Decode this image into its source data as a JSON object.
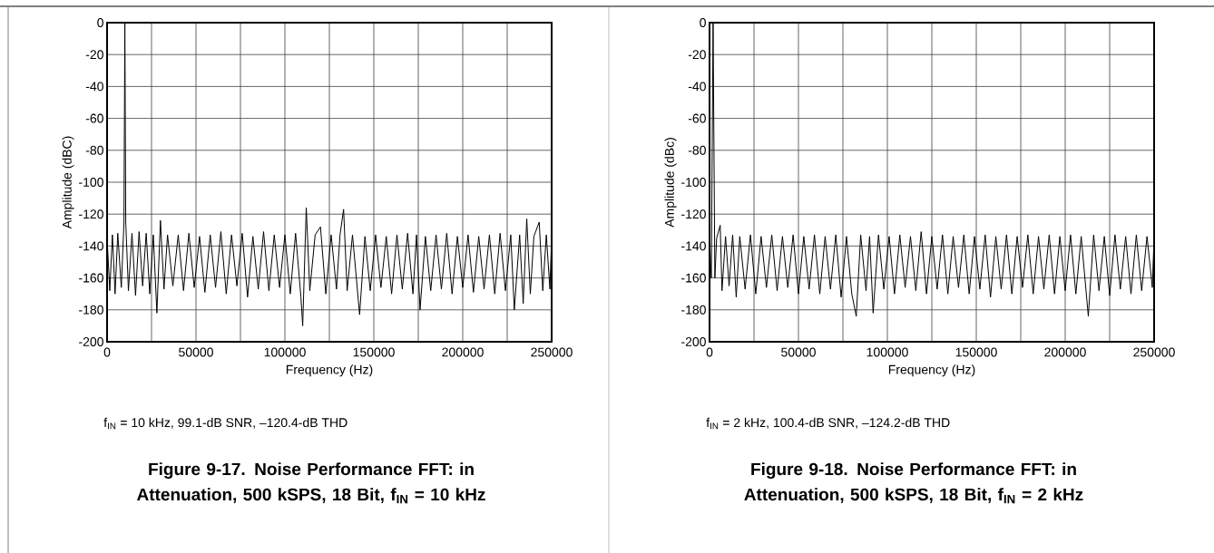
{
  "chart_data": [
    {
      "type": "line",
      "xlabel": "Frequency (Hz)",
      "ylabel": "Amplitude (dBC)",
      "title": "Figure 9-17. Noise Performance FFT: in Attenuation, 500 kSPS, 18 Bit, f$_{IN}$ = 10 kHz",
      "annotations": [
        "f$_{IN}$ = 10 kHz, 99.1-dB SNR, –120.4-dB THD"
      ],
      "xlim": [
        0,
        250000
      ],
      "ylim": [
        -200,
        0
      ],
      "xticks": [
        0,
        {
          "value": 25000,
          "label": null
        },
        50000,
        {
          "value": 75000,
          "label": null
        },
        100000,
        {
          "value": 125000,
          "label": null
        },
        150000,
        {
          "value": 175000,
          "label": null
        },
        200000,
        {
          "value": 225000,
          "label": null
        },
        250000
      ],
      "yticks": [
        -200,
        -180,
        -160,
        -140,
        -120,
        -100,
        -80,
        -60,
        -40,
        -20,
        0
      ],
      "grid": true,
      "series": [
        {
          "color": "#000000",
          "x": [
            0,
            1500,
            3000,
            4500,
            6000,
            8000,
            9500,
            10000,
            10500,
            12000,
            14000,
            16000,
            18000,
            20000,
            22000,
            24000,
            26000,
            28000,
            30000,
            32000,
            34000,
            37000,
            40000,
            43000,
            46000,
            49000,
            52000,
            55000,
            58000,
            61000,
            64000,
            67000,
            70000,
            73000,
            76000,
            79000,
            82000,
            85000,
            88000,
            91000,
            94000,
            97000,
            100000,
            103000,
            106000,
            109000,
            110000,
            112000,
            114000,
            117000,
            120000,
            123000,
            126000,
            129000,
            131000,
            133000,
            135000,
            138000,
            142000,
            145000,
            148000,
            151000,
            154000,
            157000,
            160000,
            163000,
            166000,
            169000,
            172000,
            174000,
            176000,
            179000,
            182000,
            185000,
            188000,
            191000,
            194000,
            197000,
            200000,
            203000,
            206000,
            209000,
            212000,
            215000,
            218000,
            221000,
            224000,
            227000,
            229000,
            232000,
            234000,
            236000,
            238000,
            240000,
            243000,
            245000,
            247000,
            249000,
            250000
          ],
          "values": [
            -135,
            -168,
            -133,
            -170,
            -132,
            -166,
            -125,
            0,
            -125,
            -168,
            -132,
            -171,
            -131,
            -165,
            -132,
            -170,
            -133,
            -182,
            -124,
            -167,
            -133,
            -165,
            -133,
            -168,
            -132,
            -166,
            -134,
            -169,
            -133,
            -166,
            -131,
            -170,
            -133,
            -165,
            -132,
            -172,
            -134,
            -167,
            -131,
            -168,
            -133,
            -166,
            -133,
            -170,
            -132,
            -172,
            -190,
            -116,
            -168,
            -133,
            -128,
            -170,
            -133,
            -167,
            -133,
            -117,
            -168,
            -133,
            -183,
            -134,
            -168,
            -133,
            -166,
            -134,
            -170,
            -133,
            -167,
            -132,
            -170,
            -133,
            -180,
            -134,
            -168,
            -133,
            -167,
            -132,
            -170,
            -134,
            -166,
            -133,
            -169,
            -134,
            -167,
            -133,
            -170,
            -132,
            -168,
            -133,
            -180,
            -133,
            -176,
            -123,
            -170,
            -134,
            -125,
            -168,
            -133,
            -167,
            -134
          ]
        }
      ]
    },
    {
      "type": "line",
      "xlabel": "Frequency (Hz)",
      "ylabel": "Amplitude (dBc)",
      "title": "Figure 9-18. Noise Performance FFT: in Attenuation, 500 kSPS, 18 Bit, f$_{IN}$ = 2 kHz",
      "annotations": [
        "f$_{IN}$ = 2 kHz, 100.4-dB SNR, –124.2-dB THD"
      ],
      "xlim": [
        0,
        250000
      ],
      "ylim": [
        -200,
        0
      ],
      "xticks": [
        0,
        {
          "value": 25000,
          "label": null
        },
        50000,
        {
          "value": 75000,
          "label": null
        },
        100000,
        {
          "value": 125000,
          "label": null
        },
        150000,
        {
          "value": 175000,
          "label": null
        },
        200000,
        {
          "value": 225000,
          "label": null
        },
        250000
      ],
      "yticks": [
        -200,
        -180,
        -160,
        -140,
        -120,
        -100,
        -80,
        -60,
        -40,
        -20,
        0
      ],
      "grid": true,
      "series": [
        {
          "color": "#000000",
          "x": [
            0,
            1000,
            2000,
            3000,
            4000,
            6000,
            7000,
            9000,
            11000,
            13000,
            15000,
            17000,
            20000,
            23000,
            26000,
            29000,
            32000,
            35000,
            38000,
            41000,
            44000,
            47000,
            50000,
            53000,
            56000,
            59000,
            62000,
            65000,
            68000,
            71000,
            74000,
            77000,
            80000,
            82500,
            85000,
            88000,
            90000,
            92000,
            95000,
            98000,
            101000,
            104000,
            107000,
            110000,
            113000,
            116000,
            119000,
            122000,
            125000,
            128000,
            131000,
            134000,
            137000,
            140000,
            143000,
            146000,
            149000,
            152000,
            155000,
            158000,
            161000,
            164000,
            167000,
            170000,
            173000,
            176000,
            179000,
            182000,
            185000,
            188000,
            191000,
            194000,
            197000,
            200000,
            203000,
            206000,
            209000,
            213000,
            216000,
            219000,
            222000,
            225000,
            228000,
            231000,
            234000,
            237000,
            240000,
            243000,
            246000,
            249000,
            250000
          ],
          "values": [
            -135,
            -160,
            0,
            -160,
            -135,
            -127,
            -168,
            -134,
            -165,
            -133,
            -172,
            -134,
            -167,
            -133,
            -170,
            -134,
            -166,
            -133,
            -168,
            -134,
            -166,
            -133,
            -170,
            -134,
            -167,
            -133,
            -170,
            -134,
            -167,
            -133,
            -172,
            -134,
            -170,
            -184,
            -133,
            -168,
            -134,
            -182,
            -133,
            -167,
            -134,
            -170,
            -133,
            -166,
            -134,
            -168,
            -131,
            -170,
            -134,
            -167,
            -133,
            -170,
            -134,
            -166,
            -133,
            -170,
            -134,
            -167,
            -133,
            -172,
            -134,
            -167,
            -133,
            -170,
            -134,
            -166,
            -133,
            -170,
            -134,
            -167,
            -133,
            -170,
            -134,
            -168,
            -133,
            -170,
            -134,
            -184,
            -133,
            -168,
            -134,
            -171,
            -133,
            -167,
            -134,
            -170,
            -133,
            -168,
            -134,
            -166,
            -134
          ]
        }
      ]
    }
  ]
}
